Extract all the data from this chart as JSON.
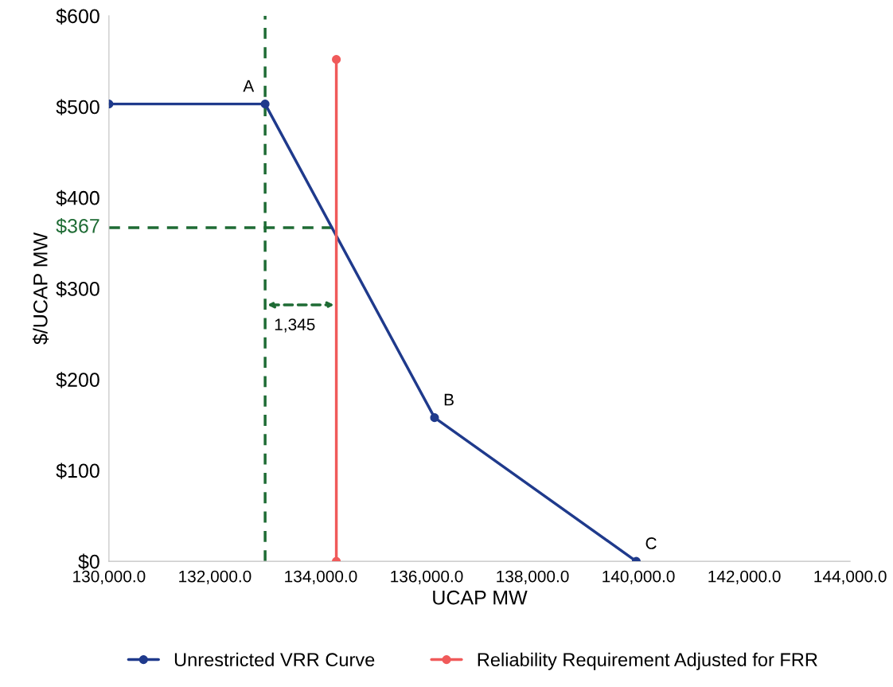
{
  "chart_data": {
    "type": "line",
    "xlabel": "UCAP MW",
    "ylabel": "$/UCAP MW",
    "series": [
      {
        "name": "Unrestricted VRR Curve",
        "color": "#1f3a8c",
        "x": [
          130000,
          132950,
          136150,
          139960
        ],
        "values": [
          503,
          503,
          158,
          0
        ]
      },
      {
        "name": "Reliability Requirement Adjusted for FRR",
        "color": "#f05a5a",
        "x": [
          134295,
          134295
        ],
        "values": [
          0,
          552
        ]
      }
    ],
    "xlim": [
      130000,
      144000
    ],
    "xticks": [
      {
        "value": 130000,
        "label": "130,000.0"
      },
      {
        "value": 132000,
        "label": "132,000.0"
      },
      {
        "value": 134000,
        "label": "134,000.0"
      },
      {
        "value": 136000,
        "label": "136,000.0"
      },
      {
        "value": 138000,
        "label": "138,000.0"
      },
      {
        "value": 140000,
        "label": "140,000.0"
      },
      {
        "value": 142000,
        "label": "142,000.0"
      },
      {
        "value": 144000,
        "label": "144,000.0"
      }
    ],
    "ylim": [
      0,
      600
    ],
    "yticks": [
      {
        "value": 0,
        "label": "$0"
      },
      {
        "value": 100,
        "label": "$100"
      },
      {
        "value": 200,
        "label": "$200"
      },
      {
        "value": 300,
        "label": "$300"
      },
      {
        "value": 400,
        "label": "$400"
      },
      {
        "value": 500,
        "label": "$500"
      },
      {
        "value": 600,
        "label": "$600"
      }
    ],
    "ref_lines": [
      {
        "axis": "x",
        "value": 132950,
        "color": "#1e6b34",
        "line_style": "dashed"
      },
      {
        "axis": "y",
        "value": 367,
        "label": "$367",
        "color": "#1e6b34",
        "line_style": "dashed"
      }
    ],
    "annotations": [
      {
        "text": "A",
        "x": 132950,
        "y": 503
      },
      {
        "text": "B",
        "x": 136150,
        "y": 158
      },
      {
        "text": "C",
        "x": 139960,
        "y": 0
      },
      "1,345"
    ],
    "marker": "circle",
    "line_style": "solid",
    "grid": false,
    "legend": "bottom"
  }
}
